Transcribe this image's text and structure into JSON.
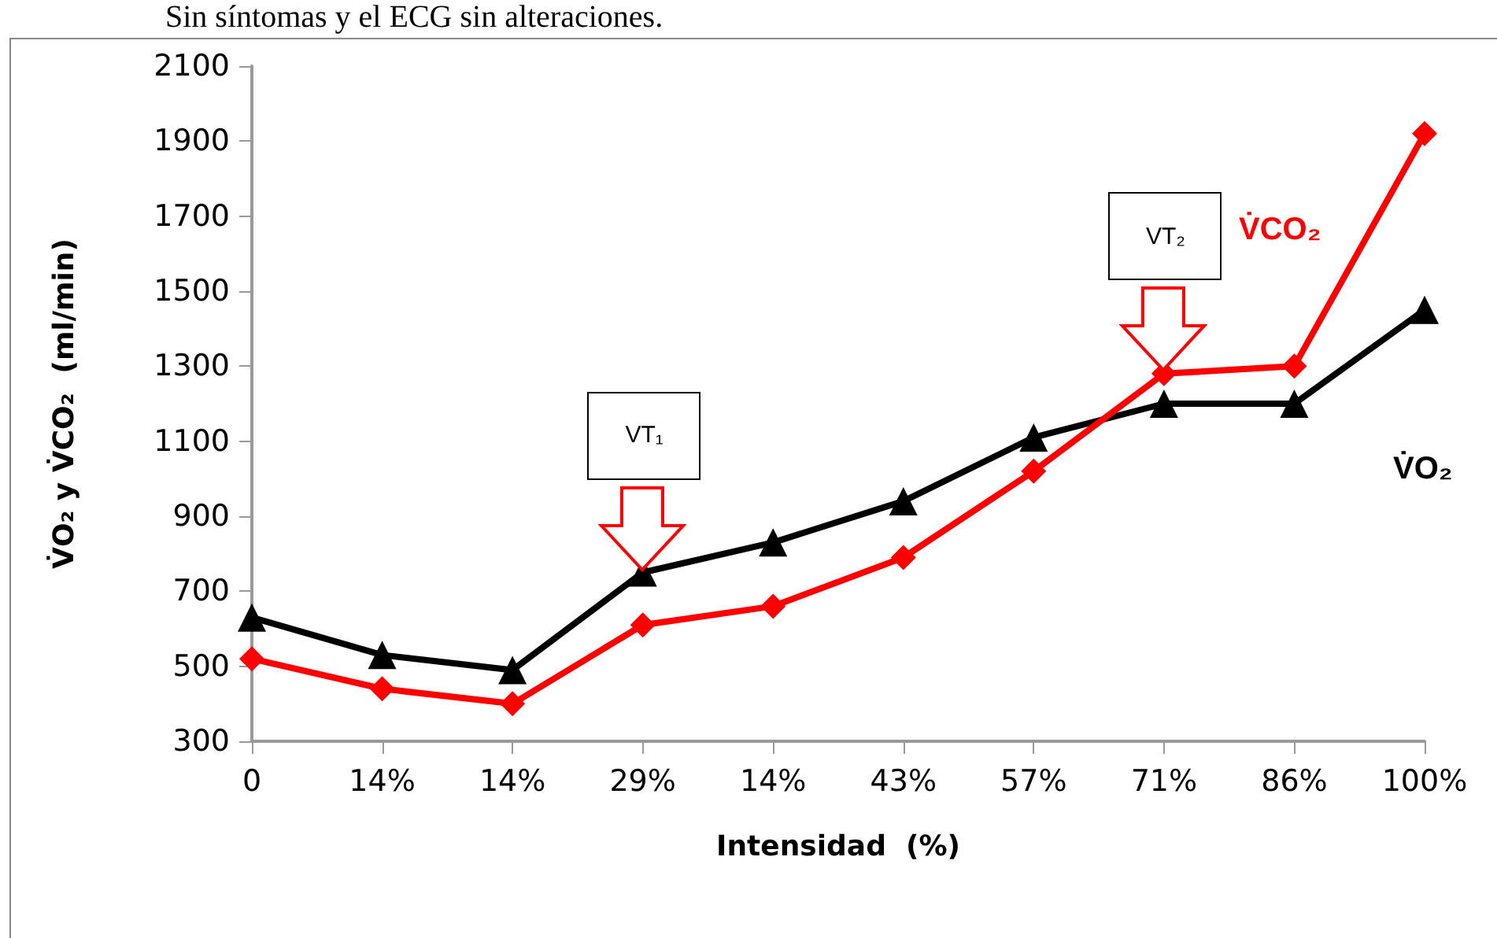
{
  "chart_data": {
    "type": "line",
    "xlabel": "Intensidad  (%)",
    "ylabel": "V̇O₂ y V̇CO₂  (ml/min)",
    "categories": [
      "0",
      "14%",
      "14%",
      "29%",
      "14%",
      "43%",
      "57%",
      "71%",
      "86%",
      "100%"
    ],
    "series": [
      {
        "name": "V̇O₂",
        "color": "#000000",
        "marker": "triangle",
        "values": [
          630,
          530,
          490,
          750,
          830,
          940,
          1110,
          1200,
          1200,
          1450
        ]
      },
      {
        "name": "V̇CO₂",
        "color": "#ff0000",
        "marker": "diamond",
        "values": [
          520,
          440,
          400,
          610,
          660,
          790,
          1020,
          1280,
          1300,
          1920
        ]
      }
    ],
    "ylim": [
      300,
      2100
    ],
    "yticks": [
      300,
      500,
      700,
      900,
      1100,
      1300,
      1500,
      1700,
      1900,
      2100
    ],
    "grid": false,
    "legend": false,
    "line_style": "solid",
    "annotations": [
      "Sin síntomas y el ECG sin alteraciones.",
      "VT₁",
      "VT₂"
    ]
  }
}
